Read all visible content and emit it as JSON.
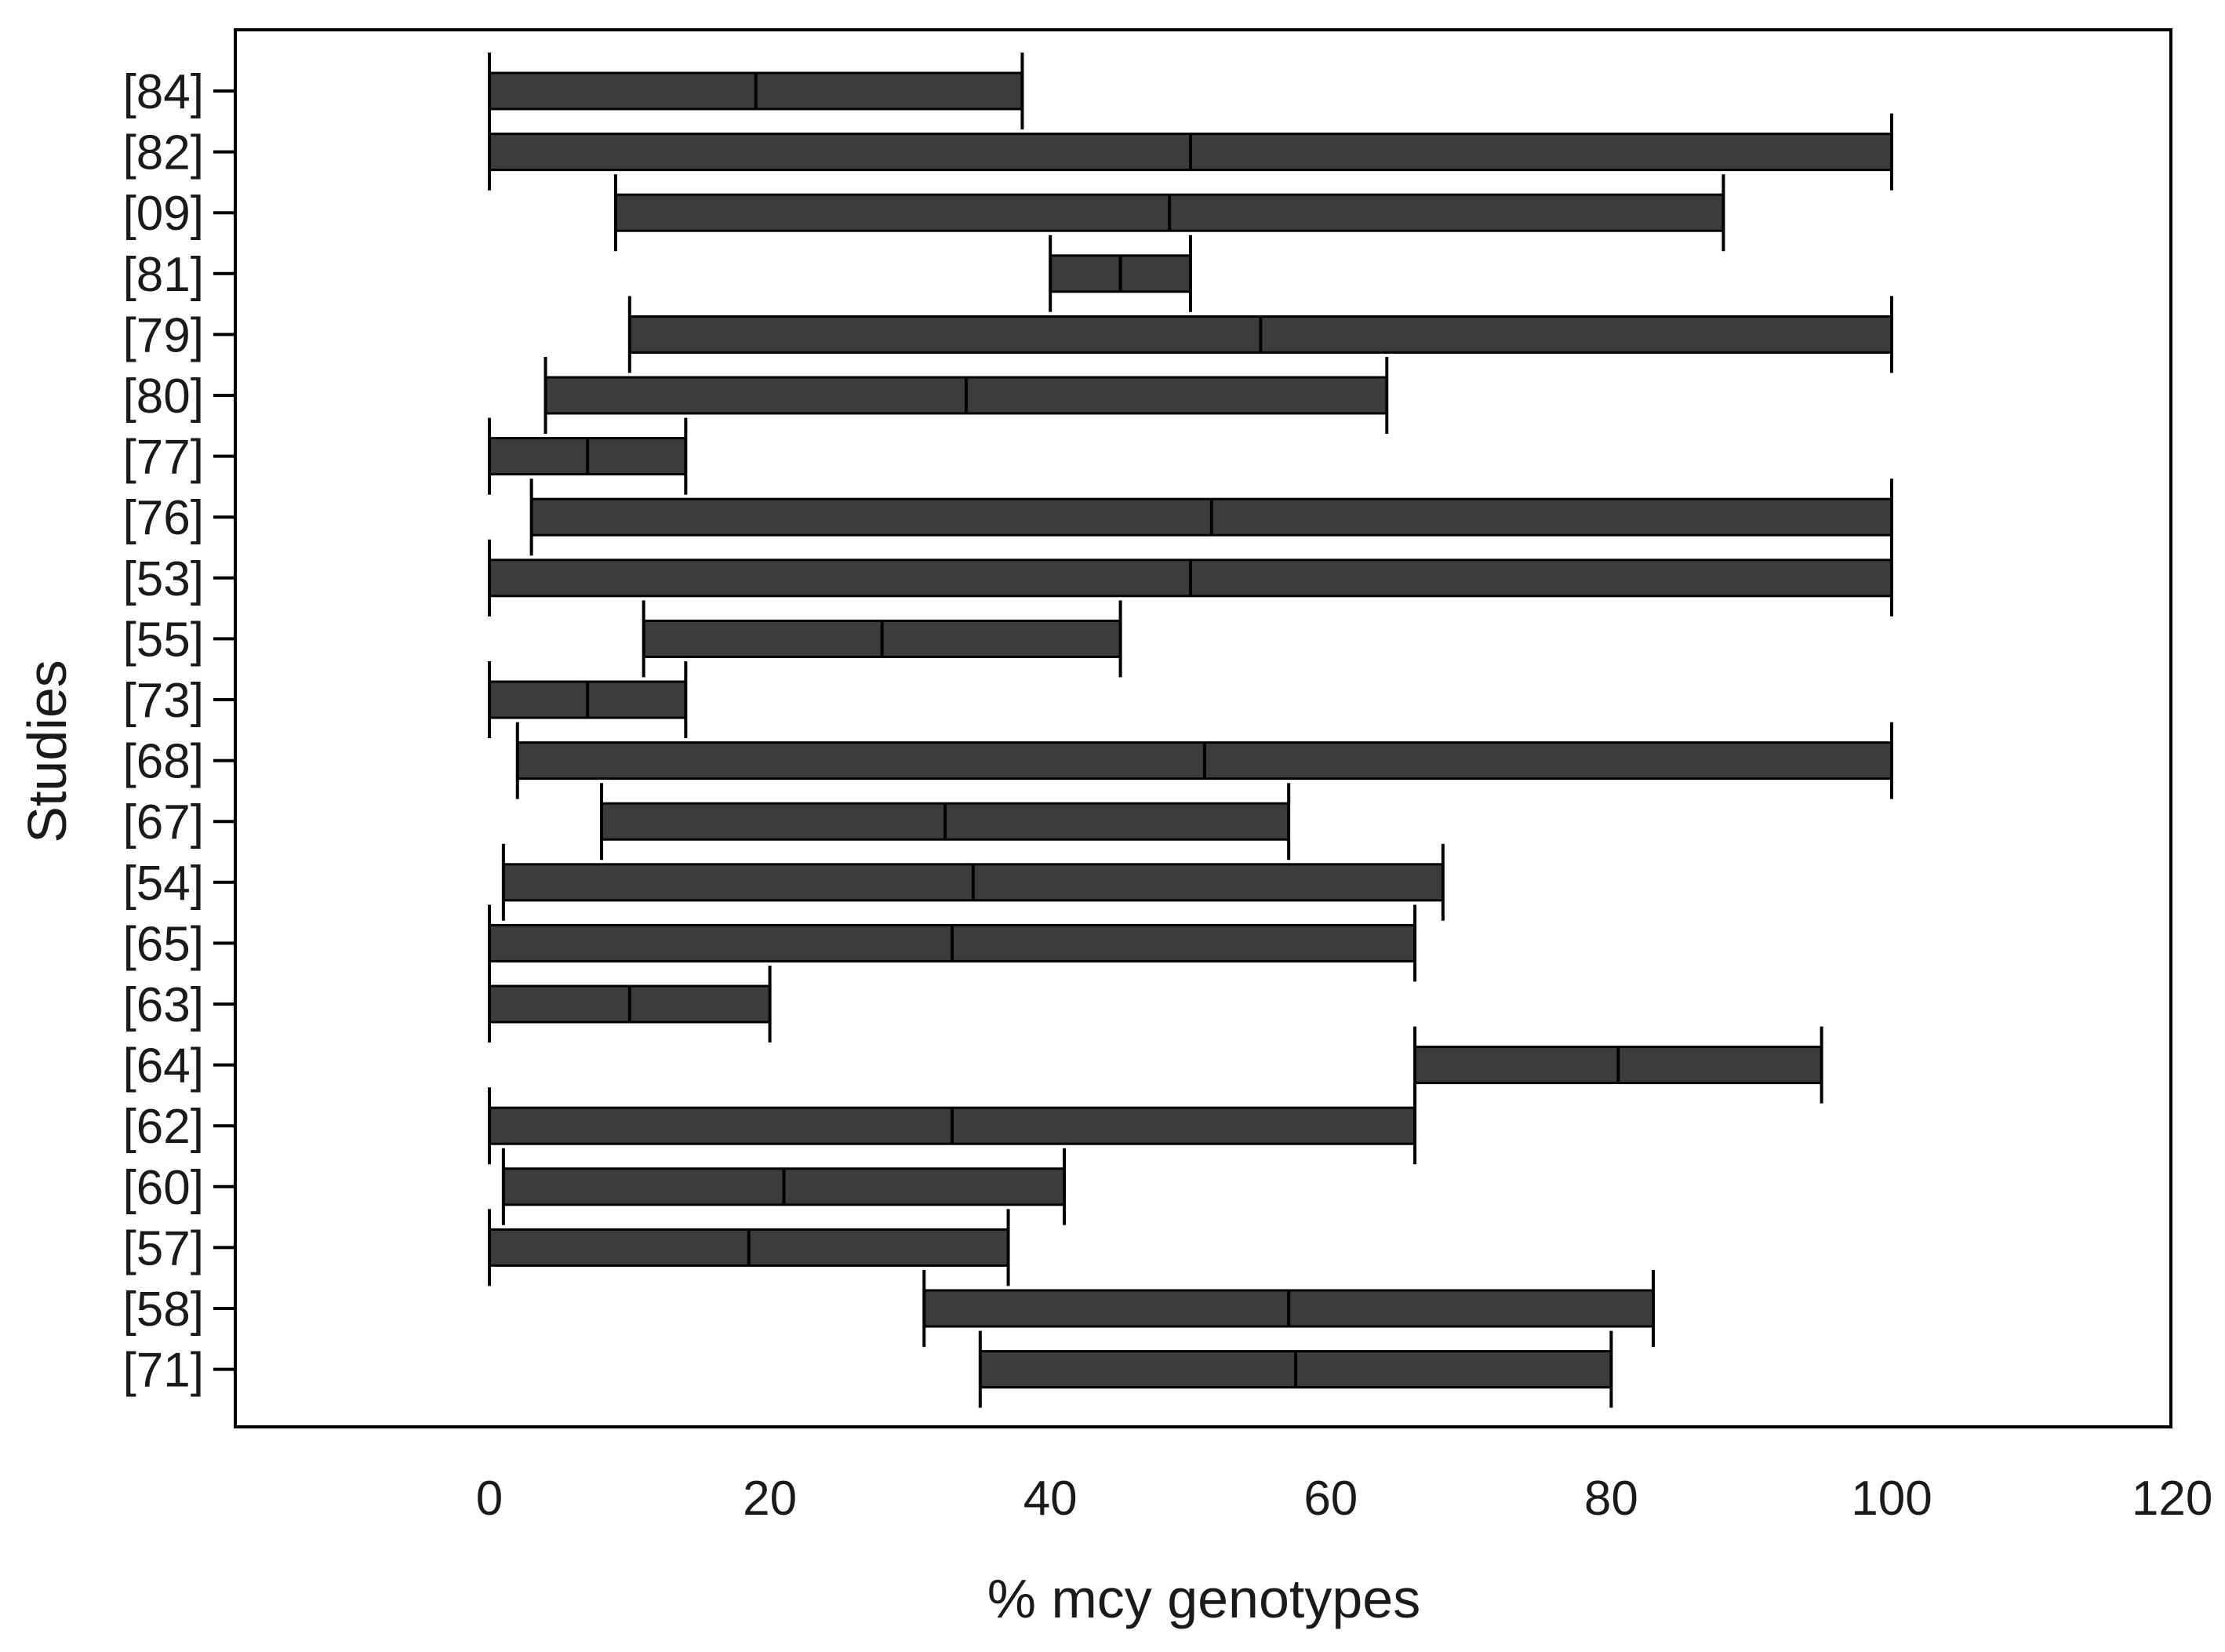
{
  "chart_data": {
    "type": "bar",
    "orientation": "horizontal",
    "xlabel": "% mcy genotypes",
    "ylabel": "Studies",
    "xlim": [
      -18,
      120
    ],
    "xticks": [
      0,
      20,
      40,
      60,
      80,
      100,
      120
    ],
    "grid": false,
    "colors": {
      "bar": "#3c3c3c",
      "line": "#000000"
    },
    "series": [
      {
        "categories": [
          "[84]",
          "[82]",
          "[09]",
          "[81]",
          "[79]",
          "[80]",
          "[77]",
          "[76]",
          "[53]",
          "[55]",
          "[73]",
          "[68]",
          "[67]",
          "[54]",
          "[65]",
          "[63]",
          "[64]",
          "[62]",
          "[60]",
          "[57]",
          "[58]",
          "[71]"
        ],
        "low": [
          0,
          0,
          9,
          40,
          10,
          4,
          0,
          3,
          0,
          11,
          0,
          2,
          8,
          1,
          0,
          0,
          66,
          0,
          1,
          0,
          31,
          35
        ],
        "median": [
          19,
          50,
          48.5,
          45,
          55,
          34,
          7,
          51.5,
          50,
          28,
          7,
          51,
          32.5,
          34.5,
          33,
          10,
          80.5,
          33,
          21,
          18.5,
          57,
          57.5
        ],
        "high": [
          38,
          100,
          88,
          50,
          100,
          64,
          14,
          100,
          100,
          45,
          14,
          100,
          57,
          68,
          66,
          20,
          95,
          66,
          41,
          37,
          83,
          80
        ]
      }
    ]
  }
}
